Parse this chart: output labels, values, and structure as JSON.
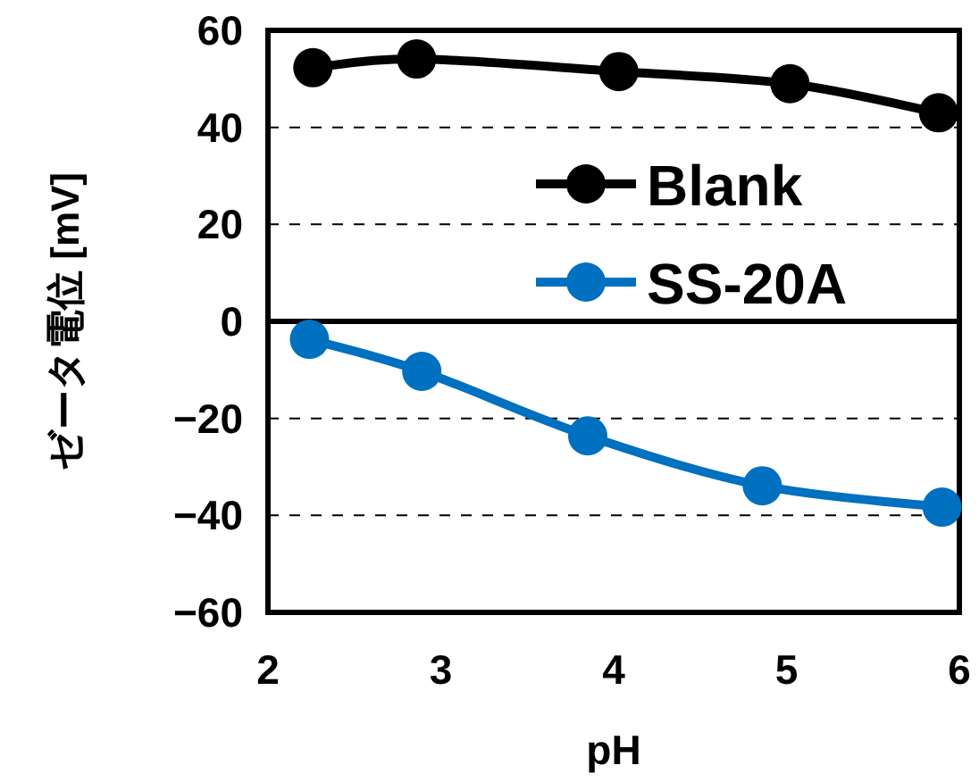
{
  "chart_data": {
    "type": "line",
    "xlabel": "pH",
    "ylabel": "ゼータ電位 [mV]",
    "xlim": [
      2,
      6
    ],
    "xticks": [
      2,
      3,
      4,
      5,
      6
    ],
    "ylim": [
      -60,
      60
    ],
    "yticks": [
      -60,
      -40,
      -20,
      0,
      20,
      40,
      60
    ],
    "grid": "y",
    "legend": "right",
    "marker": "circle",
    "line_style": "solid",
    "ref_lines": [
      {
        "axis": "y",
        "value": 0,
        "color": "#000000"
      }
    ],
    "series": [
      {
        "name": "Blank",
        "color": "#000000",
        "x": [
          2.26,
          2.86,
          4.03,
          5.02,
          5.88
        ],
        "values": [
          52.3,
          54.1,
          51.5,
          49,
          43
        ]
      },
      {
        "name": "SS-20A",
        "color": "#0070c0",
        "x": [
          2.24,
          2.89,
          3.85,
          4.86,
          5.9
        ],
        "values": [
          -3.7,
          -10.3,
          -23.6,
          -33.9,
          -38.3
        ]
      }
    ]
  }
}
